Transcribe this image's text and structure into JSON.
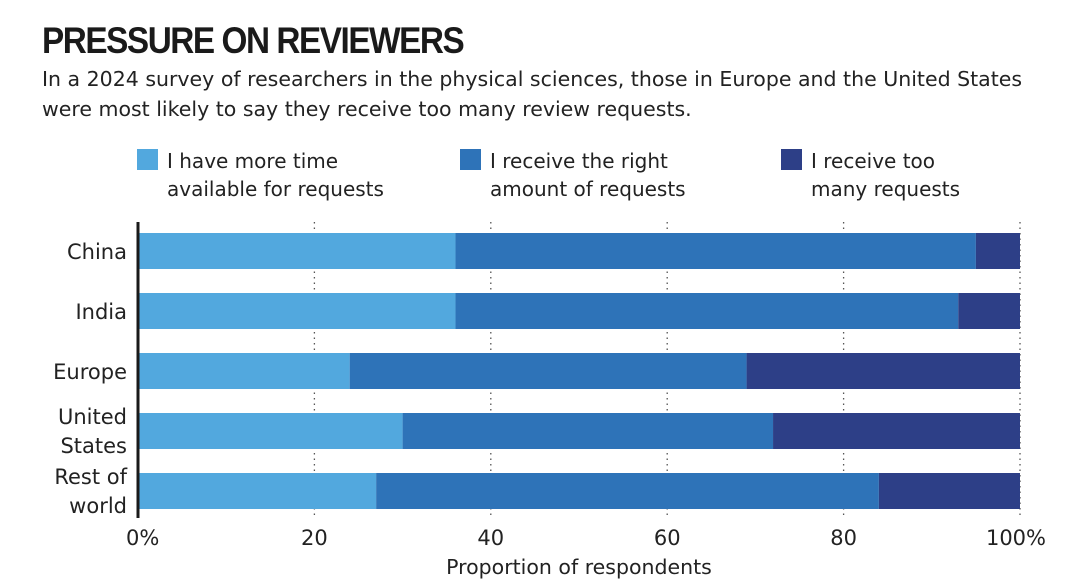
{
  "chart_data": {
    "type": "bar",
    "orientation": "horizontal",
    "stacked": true,
    "title": "PRESSURE ON REVIEWERS",
    "subtitle": "In a 2024 survey of researchers in the physical sciences, those in Europe and the United States were most likely to say they receive too many review requests.",
    "xlabel": "Proportion of respondents",
    "ylabel": "",
    "xlim": [
      0,
      100
    ],
    "x_ticks": [
      0,
      20,
      40,
      60,
      80,
      100
    ],
    "x_tick_labels": [
      "0%",
      "20",
      "40",
      "60",
      "80",
      "100%"
    ],
    "grid": "vertical dotted",
    "legend_position": "top",
    "categories": [
      [
        "China"
      ],
      [
        "India"
      ],
      [
        "Europe"
      ],
      [
        "United",
        "States"
      ],
      [
        "Rest of",
        "world"
      ]
    ],
    "series": [
      {
        "name": "I have more time\navailable for requests",
        "color": "#52a8de",
        "values": [
          36,
          36,
          24,
          30,
          27
        ]
      },
      {
        "name": "I receive the right\namount of requests",
        "color": "#2e73b8",
        "values": [
          59,
          57,
          45,
          42,
          57
        ]
      },
      {
        "name": "I receive too\nmany requests",
        "color": "#2d3f87",
        "values": [
          5,
          7,
          31,
          28,
          16
        ]
      }
    ]
  }
}
